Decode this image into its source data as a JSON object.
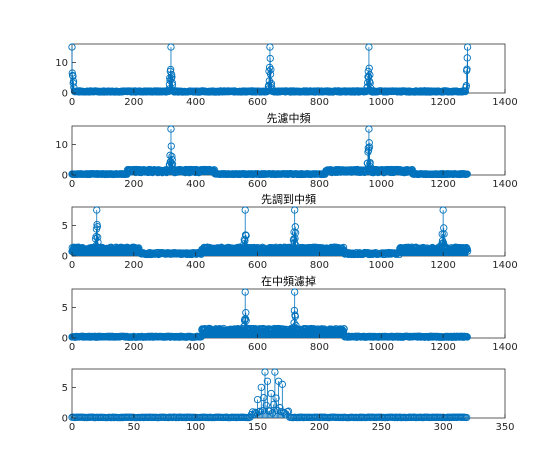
{
  "chart_data": [
    {
      "type": "scatter",
      "title": "",
      "xlabel": "",
      "ylabel": "",
      "xlim": [
        0,
        1400
      ],
      "ylim": [
        0,
        16
      ],
      "xticks": [
        0,
        200,
        400,
        600,
        800,
        1000,
        1200,
        1400
      ],
      "yticks": [
        0,
        10
      ],
      "color": "#0072BD",
      "base_level": 0.5,
      "n_points": 1280,
      "peaks": [
        {
          "x": 0,
          "y": 15
        },
        {
          "x": 320,
          "y": 15
        },
        {
          "x": 640,
          "y": 15
        },
        {
          "x": 960,
          "y": 15
        },
        {
          "x": 1279,
          "y": 15
        }
      ]
    },
    {
      "type": "scatter",
      "title": "先濾中頻",
      "xlabel": "",
      "ylabel": "",
      "xlim": [
        0,
        1400
      ],
      "ylim": [
        0,
        16
      ],
      "xticks": [
        0,
        200,
        400,
        600,
        800,
        1000,
        1200,
        1400
      ],
      "yticks": [
        0,
        10
      ],
      "color": "#0072BD",
      "base_level": 0.3,
      "n_points": 1280,
      "bumps": [
        {
          "start": 180,
          "end": 460,
          "y": 1.5
        },
        {
          "start": 820,
          "end": 1100,
          "y": 1.5
        }
      ],
      "peaks": [
        {
          "x": 320,
          "y": 15
        },
        {
          "x": 960,
          "y": 15
        }
      ]
    },
    {
      "type": "scatter",
      "title": "先調到中頻",
      "xlabel": "",
      "ylabel": "",
      "xlim": [
        0,
        1400
      ],
      "ylim": [
        0,
        8
      ],
      "xticks": [
        0,
        200,
        400,
        600,
        800,
        1000,
        1200,
        1400
      ],
      "yticks": [
        0,
        5
      ],
      "color": "#0072BD",
      "base_level": 0.4,
      "n_points": 1280,
      "bumps": [
        {
          "start": 0,
          "end": 220,
          "y": 1.2
        },
        {
          "start": 420,
          "end": 880,
          "y": 1.2
        },
        {
          "start": 1060,
          "end": 1279,
          "y": 1.2
        }
      ],
      "peaks": [
        {
          "x": 80,
          "y": 7.5
        },
        {
          "x": 560,
          "y": 7.5
        },
        {
          "x": 720,
          "y": 7.5
        },
        {
          "x": 1200,
          "y": 7.5
        }
      ]
    },
    {
      "type": "scatter",
      "title": "在中頻濾掉",
      "xlabel": "",
      "ylabel": "",
      "xlim": [
        0,
        1400
      ],
      "ylim": [
        0,
        8
      ],
      "xticks": [
        0,
        200,
        400,
        600,
        800,
        1000,
        1200,
        1400
      ],
      "yticks": [
        0,
        5
      ],
      "color": "#0072BD",
      "base_level": 0.2,
      "n_points": 1280,
      "bumps": [
        {
          "start": 420,
          "end": 880,
          "y": 1.3
        }
      ],
      "peaks": [
        {
          "x": 560,
          "y": 7.5
        },
        {
          "x": 720,
          "y": 7.5
        }
      ]
    },
    {
      "type": "scatter",
      "title": "",
      "xlabel": "",
      "ylabel": "",
      "xlim": [
        0,
        350
      ],
      "ylim": [
        0,
        8
      ],
      "xticks": [
        0,
        50,
        100,
        150,
        200,
        250,
        300,
        350
      ],
      "yticks": [
        0,
        5
      ],
      "color": "#0072BD",
      "base_level": 0.1,
      "n_points": 320,
      "bumps": [
        {
          "start": 145,
          "end": 175,
          "y": 1.0
        }
      ],
      "peaks": [
        {
          "x": 150,
          "y": 3
        },
        {
          "x": 153,
          "y": 5
        },
        {
          "x": 156,
          "y": 7.5
        },
        {
          "x": 158,
          "y": 6
        },
        {
          "x": 161,
          "y": 4
        },
        {
          "x": 164,
          "y": 7.5
        },
        {
          "x": 167,
          "y": 6
        },
        {
          "x": 170,
          "y": 5.5
        }
      ]
    }
  ]
}
